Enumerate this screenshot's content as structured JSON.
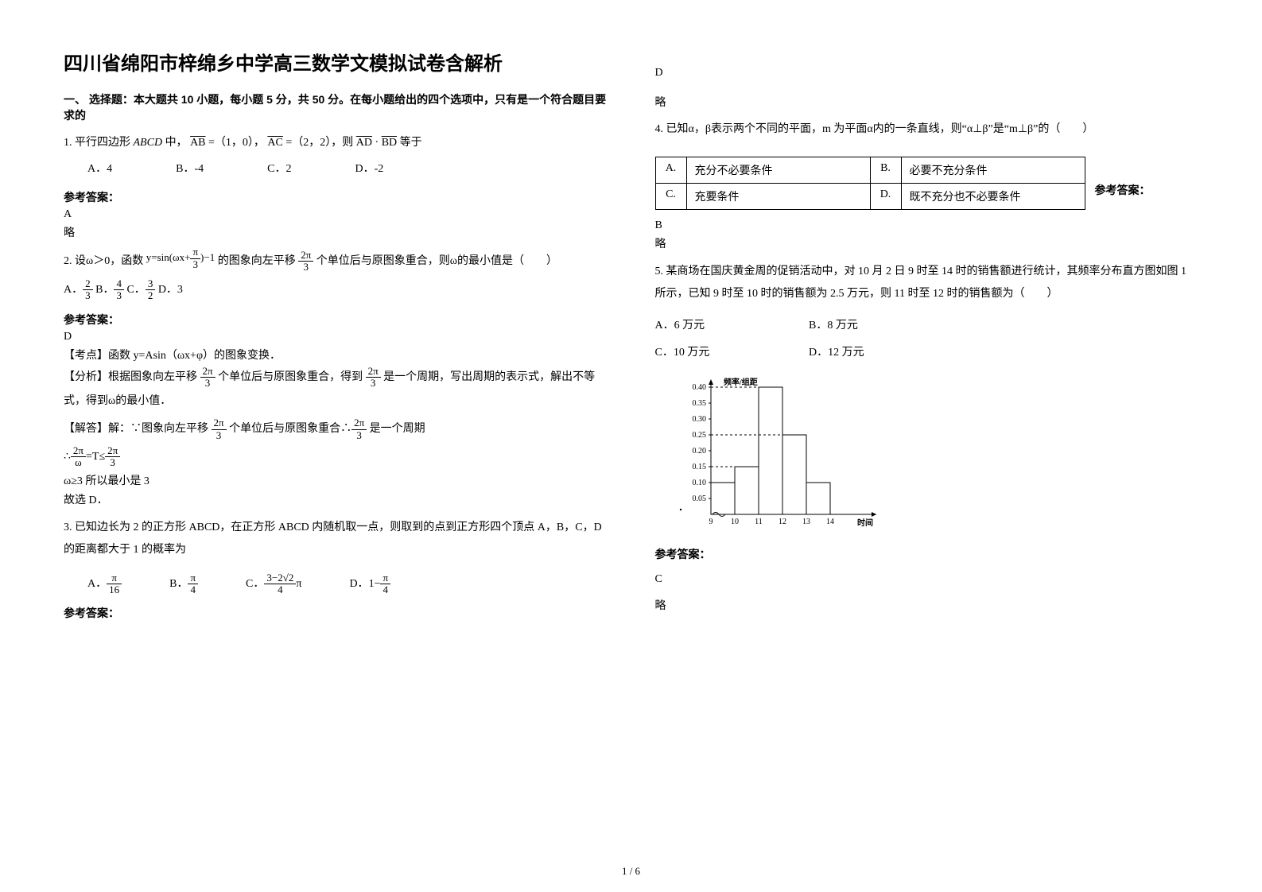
{
  "title": "四川省绵阳市梓绵乡中学高三数学文模拟试卷含解析",
  "section1_header": "一、 选择题：本大题共 10 小题，每小题 5 分，共 50 分。在每小题给出的四个选项中，只有是一个符合题目要求的",
  "answer_label": "参考答案：",
  "略": "略",
  "footer": "1 / 6",
  "q1": {
    "stem_a": "1. 平行四边形",
    "abcd": "ABCD",
    "stem_b": "中，",
    "ab": "AB",
    "eq1": " =（1，0），",
    "ac": "AC",
    "eq2": " =（2，2），则",
    "ad": "AD",
    "dot": "·",
    "bd": "BD",
    "tail": "等于",
    "optA": "A．4",
    "optB": "B．-4",
    "optC": "C．2",
    "optD": "D．-2",
    "ans": "A"
  },
  "q2": {
    "stem_a": "2. 设ω＞0，函数",
    "func": "y=sin(ωx+π/3)−1",
    "stem_b": "的图象向左平移",
    "shift": "2π/3",
    "stem_c": " 个单位后与原图象重合，则ω的最小值是（　　）",
    "optA_pre": "A．",
    "optA_n": "2",
    "optA_d": "3",
    "optB_pre": " B．",
    "optB_n": "4",
    "optB_d": "3",
    "optC_pre": " C．",
    "optC_n": "3",
    "optC_d": "2",
    "optD": " D．3",
    "ans": "D",
    "kd_label": "【考点】",
    "kd_text": "函数 y=Asin（ωx+φ）的图象变换．",
    "fx_label": "【分析】",
    "fx_a": "根据图象向左平移 ",
    "fx_b": " 个单位后与原图象重合，得到 ",
    "fx_c": " 是一个周期，写出周期的表示式，解出不等式，得到ω的最小值．",
    "jd_label": "【解答】",
    "jd_a": "解：∵图象向左平移 ",
    "jd_b": " 个单位后与原图象重合∴",
    "jd_c": " 是一个周期",
    "ineq_a": "∴",
    "ineq_b": "=T≤",
    "omega": "ω",
    "line_w": "ω≥3  所以最小是 3",
    "line_end": "故选 D．"
  },
  "q3": {
    "stem": "3. 已知边长为 2 的正方形 ABCD，在正方形 ABCD 内随机取一点，则取到的点到正方形四个顶点 A，B，C，D 的距离都大于 1 的概率为",
    "A_pre": "A．",
    "A_n": "π",
    "A_d": "16",
    "B_pre": "B．",
    "B_n": "π",
    "B_d": "4",
    "C_pre": "C．",
    "C_top": "3−2√2",
    "C_bot": "4",
    "C_tail": "π",
    "D_pre": "D．",
    "D_lead": "1−",
    "D_n": "π",
    "D_d": "4",
    "ans": "D"
  },
  "q4": {
    "stem": "4. 已知α，β表示两个不同的平面，m 为平面α内的一条直线，则“α⊥β”是“m⊥β”的（　　）",
    "A_lab": "A.",
    "A_txt": "充分不必要条件",
    "B_lab": "B.",
    "B_txt": "必要不充分条件",
    "C_lab": "C.",
    "C_txt": "充要条件",
    "D_lab": "D.",
    "D_txt": "既不充分也不必要条件",
    "ans": "B"
  },
  "q5": {
    "stem": "5. 某商场在国庆黄金周的促销活动中，对 10 月 2 日 9 时至 14 时的销售额进行统计，其频率分布直方图如图 1 所示，已知 9 时至 10 时的销售额为 2.5 万元，则 11 时至 12 时的销售额为（　　）",
    "optA": "A．6 万元",
    "optB": "B．8 万元",
    "optC": "C．10 万元",
    "optD": "D．12 万元",
    "ans": "C",
    "chart": {
      "ylabel": "频率/组距",
      "xlabel": "时间",
      "yticks": [
        "0.05",
        "0.10",
        "0.15",
        "0.20",
        "0.25",
        "0.30",
        "0.35",
        "0.40"
      ],
      "xticks": [
        "9",
        "10",
        "11",
        "12",
        "13",
        "14"
      ],
      "bars": [
        0.1,
        0.15,
        0.4,
        0.25,
        0.1
      ],
      "bar_color": "#ffffff",
      "line_color": "#000000",
      "dash_color": "#000000",
      "bg": "#ffffff",
      "font_size": 10
    }
  }
}
